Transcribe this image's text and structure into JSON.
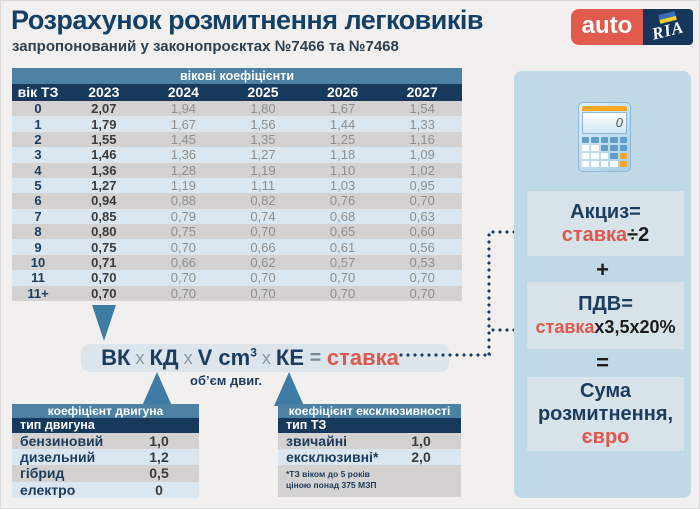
{
  "header": {
    "title": "Розрахунок розмитнення легковиків",
    "subtitle": "запропонований у законопроєктах №7466 та №7468",
    "logo": {
      "auto": "auto",
      "ria": "RIA"
    }
  },
  "age_table": {
    "caption": "вікові коефіцієнти",
    "columns": [
      "вік ТЗ",
      "2023",
      "2024",
      "2025",
      "2026",
      "2027"
    ],
    "rows": [
      {
        "age": "0",
        "values": [
          "2,07",
          "1,94",
          "1,80",
          "1,67",
          "1,54"
        ]
      },
      {
        "age": "1",
        "values": [
          "1,79",
          "1,67",
          "1,56",
          "1,44",
          "1,33"
        ]
      },
      {
        "age": "2",
        "values": [
          "1,55",
          "1,45",
          "1,35",
          "1,25",
          "1,16"
        ]
      },
      {
        "age": "3",
        "values": [
          "1,46",
          "1,36",
          "1,27",
          "1,18",
          "1,09"
        ]
      },
      {
        "age": "4",
        "values": [
          "1,36",
          "1,28",
          "1,19",
          "1,10",
          "1,02"
        ]
      },
      {
        "age": "5",
        "values": [
          "1,27",
          "1,19",
          "1,11",
          "1,03",
          "0,95"
        ]
      },
      {
        "age": "6",
        "values": [
          "0,94",
          "0,88",
          "0,82",
          "0,76",
          "0,70"
        ]
      },
      {
        "age": "7",
        "values": [
          "0,85",
          "0,79",
          "0,74",
          "0,68",
          "0,63"
        ]
      },
      {
        "age": "8",
        "values": [
          "0,80",
          "0,75",
          "0,70",
          "0,65",
          "0,60"
        ]
      },
      {
        "age": "9",
        "values": [
          "0,75",
          "0,70",
          "0,66",
          "0,61",
          "0,56"
        ]
      },
      {
        "age": "10",
        "values": [
          "0,71",
          "0,66",
          "0,62",
          "0,57",
          "0,53"
        ]
      },
      {
        "age": "11",
        "values": [
          "0,70",
          "0,70",
          "0,70",
          "0,70",
          "0,70"
        ]
      },
      {
        "age": "11+",
        "values": [
          "0,70",
          "0,70",
          "0,70",
          "0,70",
          "0,70"
        ]
      }
    ]
  },
  "formula": {
    "vk": "ВК",
    "x1": " х ",
    "kd": "КД",
    "x2": " х ",
    "v": "V cm",
    "v_sup": "3",
    "x3": " х ",
    "ke": "КЕ",
    "eq": " = ",
    "stavka": "ставка",
    "volume_label": "об’єм двиг."
  },
  "engine_table": {
    "caption": "коефіцієнт двигуна",
    "header": "тип двигуна",
    "rows": [
      {
        "name": "бензиновий",
        "value": "1,0"
      },
      {
        "name": "дизельний",
        "value": "1,2"
      },
      {
        "name": "гібрид",
        "value": "0,5"
      },
      {
        "name": "електро",
        "value": "0"
      }
    ]
  },
  "exclusivity_table": {
    "caption": "коефіцієнт ексклюзивності",
    "header": "тип ТЗ",
    "rows": [
      {
        "name": "звичайні",
        "value": "1,0"
      },
      {
        "name": "ексклюзивні*",
        "value": "2,0"
      }
    ],
    "footnote_line1": "*ТЗ віком до 5 років",
    "footnote_line2": "ціною понад 375 МЗП"
  },
  "right_panel": {
    "calculator_display": "0",
    "akcyz": {
      "label": "Акциз=",
      "stavka": "ставка",
      "formula": "÷2"
    },
    "plus": "+",
    "pdv": {
      "label": "ПДВ=",
      "stavka": "ставка",
      "formula": "х3,5х20%"
    },
    "equals": "=",
    "total": {
      "line1": "Сума",
      "line2": "розмитнення,",
      "line3": "євро"
    }
  },
  "colors": {
    "accent_red": "#df584c",
    "navy": "#16395c",
    "teal_header": "#4d81a3",
    "arrow_steel": "#3e7ca6",
    "panel_blue": "#bfdae6",
    "row_gray": "#d3d2d0",
    "row_blue": "#dbe7f0"
  }
}
